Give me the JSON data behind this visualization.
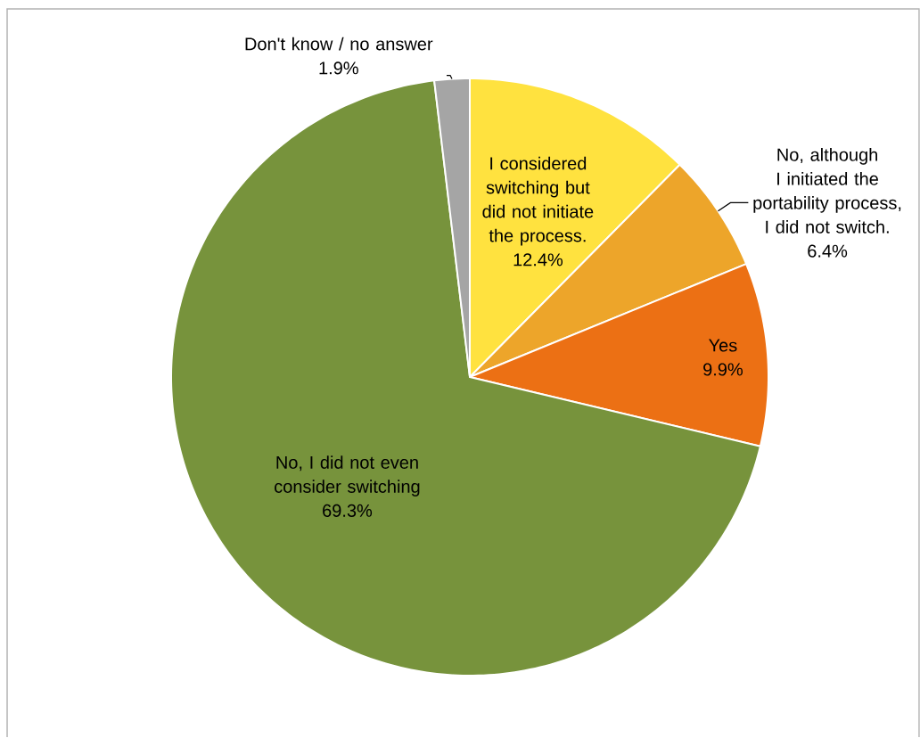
{
  "chart_data": {
    "type": "pie",
    "categories": [
      "I considered switching but did not initiate the process.",
      "No, although I initiated the portability process, I did not switch.",
      "Yes",
      "No, I did not even consider switching",
      "Don't know / no answer"
    ],
    "values": [
      12.4,
      6.4,
      9.9,
      69.3,
      1.9
    ],
    "value_labels": [
      "12.4%",
      "6.4%",
      "9.9%",
      "69.3%",
      "1.9%"
    ],
    "colors": [
      "#ffe23f",
      "#eda52a",
      "#ec7014",
      "#77933c",
      "#a5a5a5"
    ]
  }
}
